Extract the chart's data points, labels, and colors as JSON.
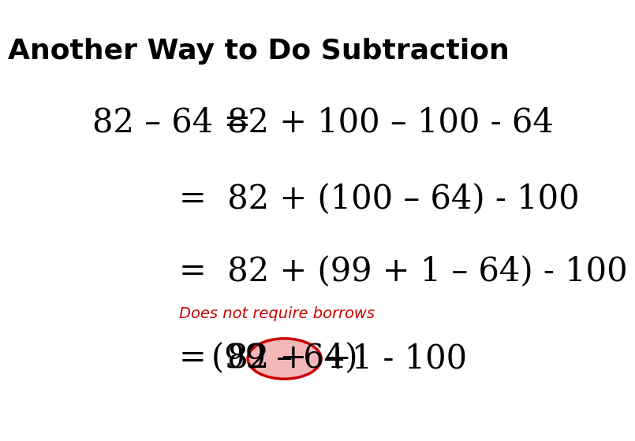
{
  "title": "Another Way to Do Subtraction",
  "title_fontsize": 26,
  "title_fontweight": "bold",
  "bg_color": "#ffffff",
  "line1_left": "82 – 64 =",
  "line1_right": " 82 + 100 – 100 - 64",
  "line2": "=  82 + (100 – 64) - 100",
  "line3": "=  82 + (99 + 1 – 64) - 100",
  "note": "Does not require borrows",
  "line4_parts": [
    "=  82 + ",
    "(99 – 64)",
    "+1 - 100"
  ],
  "math_fontsize": 30,
  "note_fontsize": 14,
  "note_color": "#cc0000",
  "ellipse_fill": "#f5b8b8",
  "ellipse_edge": "#cc0000",
  "text_color": "#000000"
}
